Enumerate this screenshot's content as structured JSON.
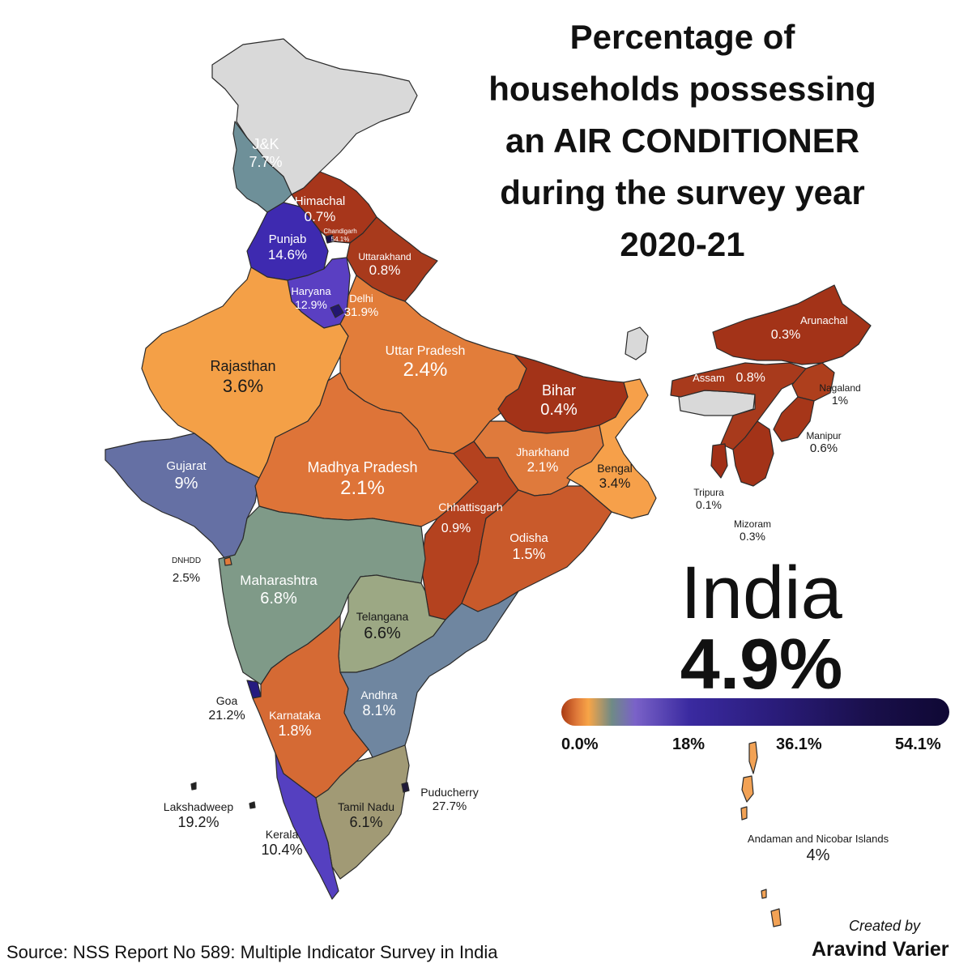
{
  "title_lines": [
    "Percentage of",
    "households possessing",
    "an AIR CONDITIONER",
    "during the survey year",
    "2020-21"
  ],
  "regions": {
    "jk": {
      "name": "J&K",
      "value": "7.7%",
      "color": "#6e9099"
    },
    "himachal": {
      "name": "Himachal",
      "value": "0.7%",
      "color": "#a7361b"
    },
    "chandigarh": {
      "name": "Chandigarh",
      "value": "54.1%",
      "color": "#190f4a"
    },
    "punjab": {
      "name": "Punjab",
      "value": "14.6%",
      "color": "#3e2ab0"
    },
    "uttarakhand": {
      "name": "Uttarakhand",
      "value": "0.8%",
      "color": "#a83a1c"
    },
    "haryana": {
      "name": "Haryana",
      "value": "12.9%",
      "color": "#5a3fc2"
    },
    "delhi": {
      "name": "Delhi",
      "value": "31.9%",
      "color": "#231770"
    },
    "rajasthan": {
      "name": "Rajasthan",
      "value": "3.6%",
      "color": "#f4a047"
    },
    "uttar_pradesh": {
      "name": "Uttar Pradesh",
      "value": "2.4%",
      "color": "#e27d3a"
    },
    "bihar": {
      "name": "Bihar",
      "value": "0.4%",
      "color": "#a33318"
    },
    "gujarat": {
      "name": "Gujarat",
      "value": "9%",
      "color": "#6570a4"
    },
    "madhya_pradesh": {
      "name": "Madhya Pradesh",
      "value": "2.1%",
      "color": "#de7438"
    },
    "jharkhand": {
      "name": "Jharkhand",
      "value": "2.1%",
      "color": "#df7a3c"
    },
    "bengal": {
      "name": "Bengal",
      "value": "3.4%",
      "color": "#f6a04a"
    },
    "chhattisgarh": {
      "name": "Chhattisgarh",
      "value": "0.9%",
      "color": "#b4421f"
    },
    "odisha": {
      "name": "Odisha",
      "value": "1.5%",
      "color": "#c95a2b"
    },
    "maharashtra": {
      "name": "Maharashtra",
      "value": "6.8%",
      "color": "#7f9a88"
    },
    "telangana": {
      "name": "Telangana",
      "value": "6.6%",
      "color": "#9ca884"
    },
    "goa": {
      "name": "Goa",
      "value": "21.2%",
      "color": "#251a80"
    },
    "karnataka": {
      "name": "Karnataka",
      "value": "1.8%",
      "color": "#d56a34"
    },
    "andhra": {
      "name": "Andhra",
      "value": "8.1%",
      "color": "#6f86a0"
    },
    "tamil_nadu": {
      "name": "Tamil Nadu",
      "value": "6.1%",
      "color": "#a19a75"
    },
    "kerala": {
      "name": "Kerala",
      "value": "10.4%",
      "color": "#5540c0"
    },
    "puducherry": {
      "name": "Puducherry",
      "value": "27.7%",
      "color": "#1f1a3a"
    },
    "lakshadweep": {
      "name": "Lakshadweep",
      "value": "19.2%",
      "color": "#222222"
    },
    "dnhdd": {
      "name": "DNHDD",
      "value": "2.5%",
      "color": "#e07a3a"
    },
    "arunachal": {
      "name": "Arunachal",
      "value": "0.3%",
      "color": "#a33318"
    },
    "assam": {
      "name": "Assam",
      "value": "0.8%",
      "color": "#a83a1c"
    },
    "nagaland": {
      "name": "Nagaland",
      "value": "1%",
      "color": "#ae3f1d"
    },
    "manipur": {
      "name": "Manipur",
      "value": "0.6%",
      "color": "#a63619"
    },
    "tripura": {
      "name": "Tripura",
      "value": "0.1%",
      "color": "#a12f17"
    },
    "mizoram": {
      "name": "Mizoram",
      "value": "0.3%",
      "color": "#a33318"
    },
    "andaman": {
      "name": "Andaman and Nicobar Islands",
      "value": "4%",
      "color": "#f2a255"
    }
  },
  "no_data_color": "#d9d9d9",
  "india": {
    "name": "India",
    "value": "4.9%"
  },
  "legend": {
    "ticks": [
      "0.0%",
      "18%",
      "36.1%",
      "54.1%"
    ]
  },
  "source": "Source: NSS Report No 589: Multiple Indicator Survey in India",
  "credit": {
    "created_by": "Created by",
    "author": "Aravind Varier"
  }
}
